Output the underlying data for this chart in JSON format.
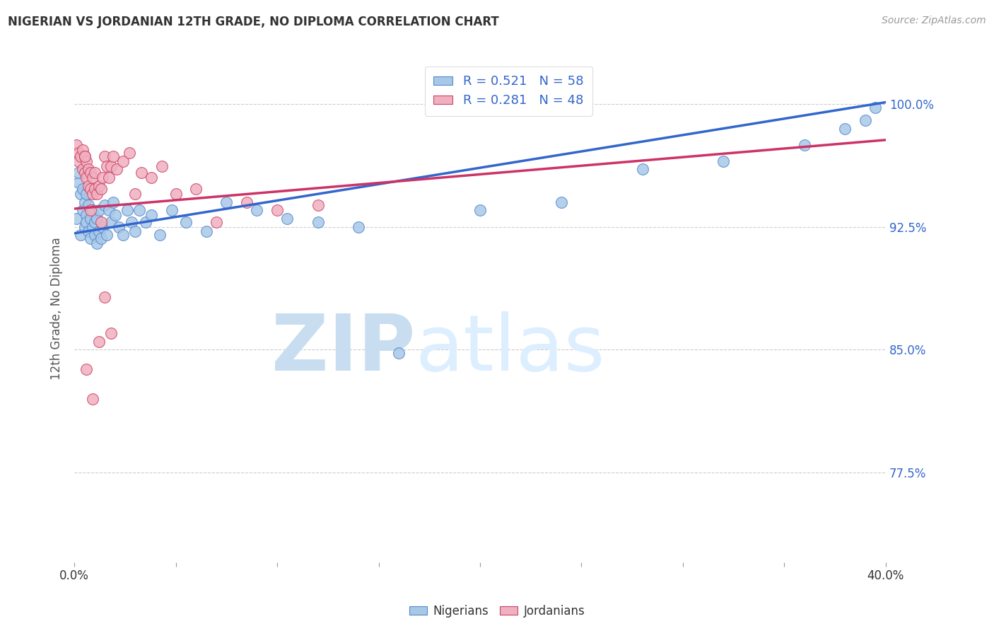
{
  "title": "NIGERIAN VS JORDANIAN 12TH GRADE, NO DIPLOMA CORRELATION CHART",
  "source": "Source: ZipAtlas.com",
  "ylabel": "12th Grade, No Diploma",
  "yticks": [
    "100.0%",
    "92.5%",
    "85.0%",
    "77.5%"
  ],
  "ytick_vals": [
    1.0,
    0.925,
    0.85,
    0.775
  ],
  "xmin": 0.0,
  "xmax": 0.4,
  "ymin": 0.72,
  "ymax": 1.03,
  "legend_r_nigerian": "R = 0.521",
  "legend_n_nigerian": "N = 58",
  "legend_r_jordanian": "R = 0.281",
  "legend_n_jordanian": "N = 48",
  "nigerian_color": "#a8c8e8",
  "jordanian_color": "#f0b0c0",
  "nigerian_edge_color": "#5588cc",
  "jordanian_edge_color": "#cc4466",
  "nigerian_line_color": "#3366cc",
  "jordanian_line_color": "#cc3366",
  "watermark_zip": "ZIP",
  "watermark_atlas": "atlas",
  "nigerian_scatter_x": [
    0.001,
    0.002,
    0.002,
    0.003,
    0.003,
    0.004,
    0.004,
    0.005,
    0.005,
    0.006,
    0.006,
    0.006,
    0.007,
    0.007,
    0.008,
    0.008,
    0.009,
    0.009,
    0.01,
    0.01,
    0.011,
    0.011,
    0.012,
    0.012,
    0.013,
    0.014,
    0.015,
    0.016,
    0.017,
    0.018,
    0.019,
    0.02,
    0.022,
    0.024,
    0.026,
    0.028,
    0.03,
    0.032,
    0.035,
    0.038,
    0.042,
    0.048,
    0.055,
    0.065,
    0.075,
    0.09,
    0.105,
    0.12,
    0.14,
    0.16,
    0.2,
    0.24,
    0.28,
    0.32,
    0.36,
    0.38,
    0.39,
    0.395
  ],
  "nigerian_scatter_y": [
    0.93,
    0.952,
    0.958,
    0.945,
    0.92,
    0.935,
    0.948,
    0.925,
    0.94,
    0.932,
    0.928,
    0.945,
    0.922,
    0.938,
    0.918,
    0.93,
    0.925,
    0.935,
    0.92,
    0.928,
    0.915,
    0.93,
    0.922,
    0.935,
    0.918,
    0.925,
    0.938,
    0.92,
    0.935,
    0.928,
    0.94,
    0.932,
    0.925,
    0.92,
    0.935,
    0.928,
    0.922,
    0.935,
    0.928,
    0.932,
    0.92,
    0.935,
    0.928,
    0.922,
    0.94,
    0.935,
    0.93,
    0.928,
    0.925,
    0.848,
    0.935,
    0.94,
    0.96,
    0.965,
    0.975,
    0.985,
    0.99,
    0.998
  ],
  "jordanian_scatter_x": [
    0.001,
    0.002,
    0.002,
    0.003,
    0.004,
    0.004,
    0.005,
    0.005,
    0.006,
    0.006,
    0.007,
    0.007,
    0.008,
    0.008,
    0.009,
    0.009,
    0.01,
    0.01,
    0.011,
    0.012,
    0.013,
    0.014,
    0.015,
    0.016,
    0.017,
    0.018,
    0.019,
    0.021,
    0.024,
    0.027,
    0.03,
    0.033,
    0.038,
    0.043,
    0.05,
    0.06,
    0.07,
    0.085,
    0.1,
    0.12,
    0.013,
    0.008,
    0.012,
    0.018,
    0.006,
    0.009,
    0.015,
    0.005
  ],
  "jordanian_scatter_y": [
    0.975,
    0.97,
    0.965,
    0.968,
    0.96,
    0.972,
    0.958,
    0.968,
    0.955,
    0.965,
    0.95,
    0.96,
    0.948,
    0.958,
    0.945,
    0.955,
    0.948,
    0.958,
    0.945,
    0.95,
    0.948,
    0.955,
    0.968,
    0.962,
    0.955,
    0.962,
    0.968,
    0.96,
    0.965,
    0.97,
    0.945,
    0.958,
    0.955,
    0.962,
    0.945,
    0.948,
    0.928,
    0.94,
    0.935,
    0.938,
    0.928,
    0.935,
    0.855,
    0.86,
    0.838,
    0.82,
    0.882,
    0.968
  ]
}
